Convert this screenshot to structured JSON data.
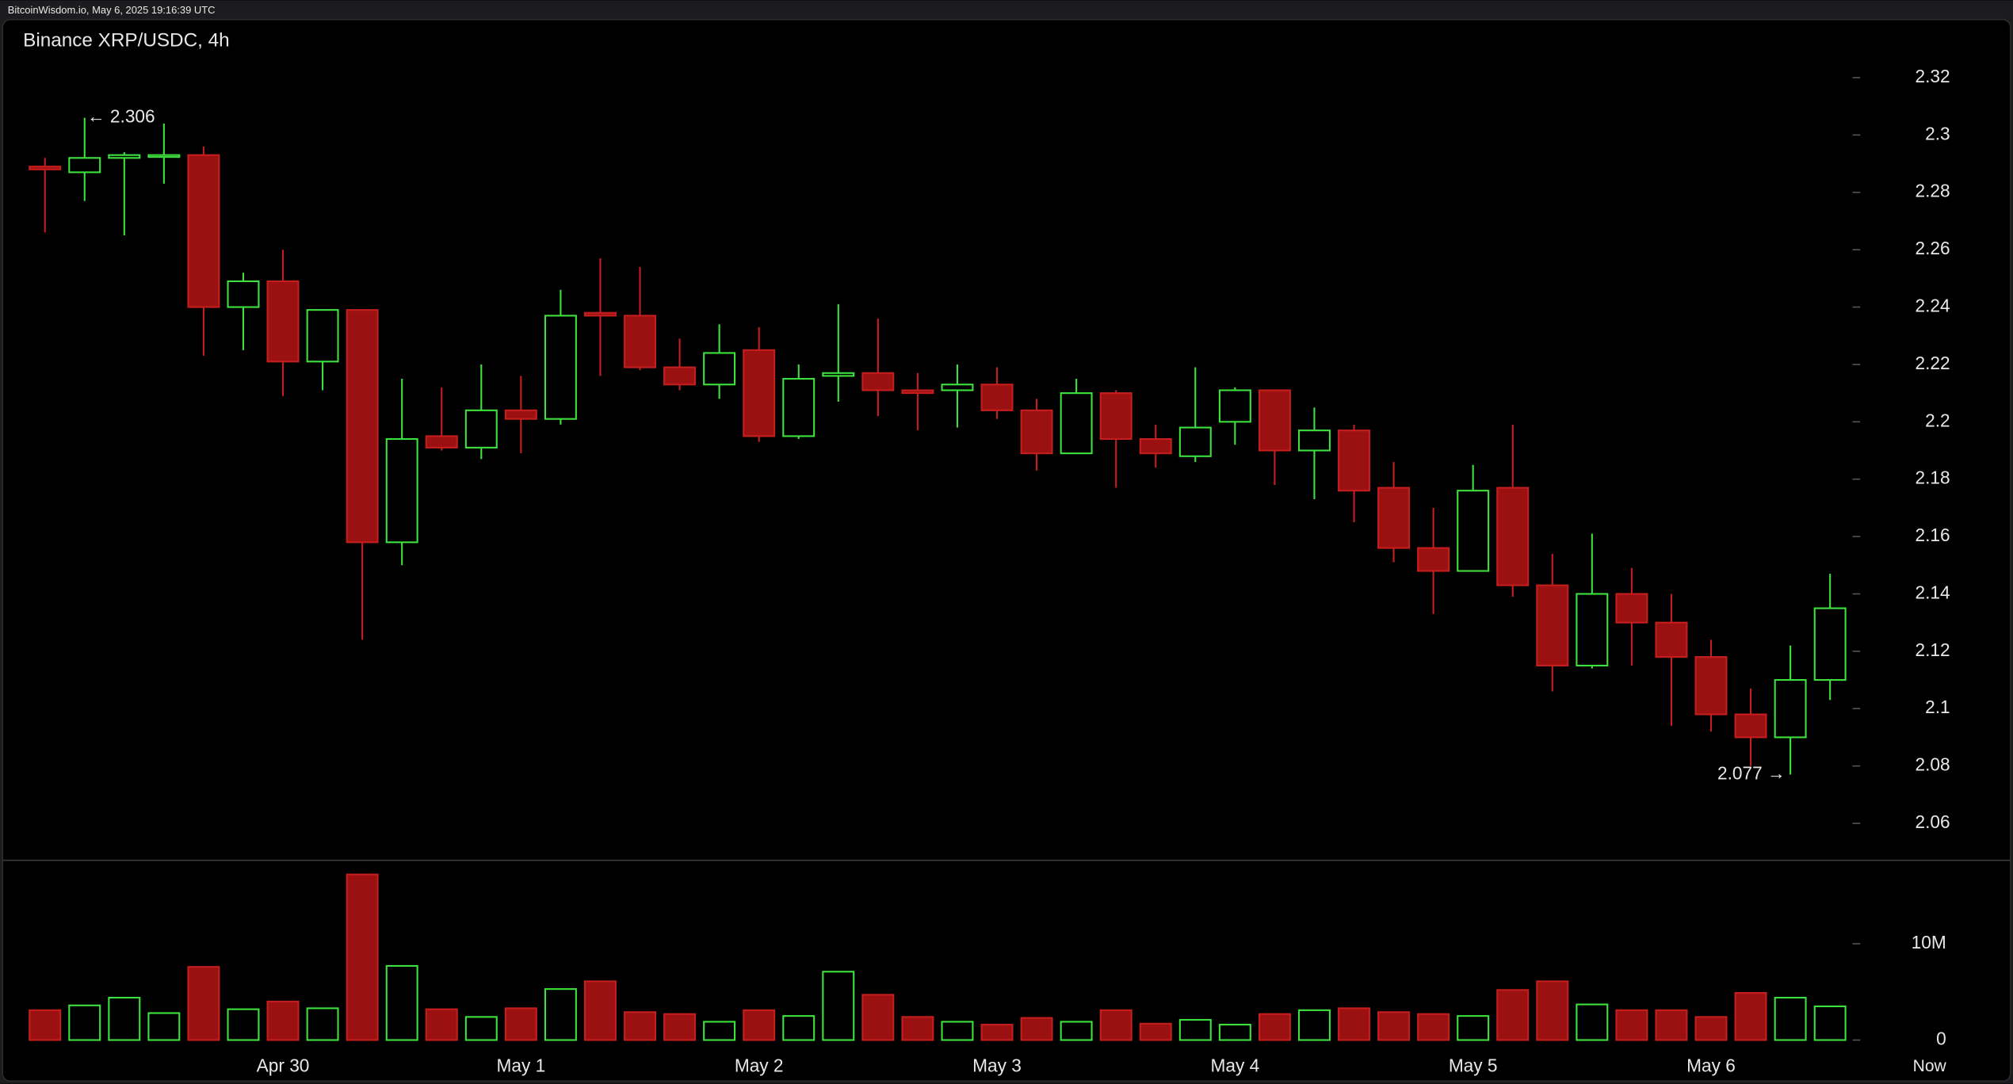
{
  "header": {
    "source": "BitcoinWisdom.io, May 6, 2025 19:16:39 UTC"
  },
  "chart_data": {
    "type": "candlestick",
    "title": "Binance XRP/USDC, 4h",
    "categories": [
      null,
      null,
      null,
      null,
      null,
      null,
      "Apr 30",
      null,
      null,
      null,
      null,
      null,
      "May 1",
      null,
      null,
      null,
      null,
      null,
      "May 2",
      null,
      null,
      null,
      null,
      null,
      "May 3",
      null,
      null,
      null,
      null,
      null,
      "May 4",
      null,
      null,
      null,
      null,
      null,
      "May 5",
      null,
      null,
      null,
      null,
      null,
      "May 6",
      null,
      null,
      null
    ],
    "now_label": "Now",
    "open": [
      2.289,
      2.287,
      2.292,
      2.293,
      2.293,
      2.24,
      2.249,
      2.221,
      2.239,
      2.158,
      2.195,
      2.191,
      2.204,
      2.201,
      2.238,
      2.237,
      2.219,
      2.213,
      2.225,
      2.195,
      2.216,
      2.217,
      2.211,
      2.211,
      2.213,
      2.204,
      2.189,
      2.21,
      2.194,
      2.188,
      2.2,
      2.211,
      2.19,
      2.197,
      2.177,
      2.156,
      2.148,
      2.177,
      2.143,
      2.115,
      2.14,
      2.13,
      2.118,
      2.098,
      2.09,
      2.11
    ],
    "high": [
      2.292,
      2.306,
      2.294,
      2.304,
      2.296,
      2.252,
      2.26,
      2.239,
      2.239,
      2.215,
      2.212,
      2.22,
      2.216,
      2.246,
      2.257,
      2.254,
      2.229,
      2.234,
      2.233,
      2.22,
      2.241,
      2.236,
      2.217,
      2.22,
      2.219,
      2.208,
      2.215,
      2.211,
      2.199,
      2.219,
      2.212,
      2.211,
      2.205,
      2.199,
      2.186,
      2.17,
      2.185,
      2.199,
      2.154,
      2.161,
      2.149,
      2.14,
      2.124,
      2.107,
      2.122,
      2.147
    ],
    "low": [
      2.266,
      2.277,
      2.265,
      2.283,
      2.223,
      2.225,
      2.209,
      2.211,
      2.124,
      2.15,
      2.19,
      2.187,
      2.189,
      2.199,
      2.216,
      2.218,
      2.211,
      2.208,
      2.193,
      2.194,
      2.207,
      2.202,
      2.197,
      2.198,
      2.201,
      2.183,
      2.189,
      2.177,
      2.184,
      2.186,
      2.192,
      2.178,
      2.173,
      2.165,
      2.151,
      2.133,
      2.148,
      2.139,
      2.106,
      2.114,
      2.115,
      2.094,
      2.092,
      2.08,
      2.077,
      2.103
    ],
    "close": [
      2.288,
      2.292,
      2.293,
      2.293,
      2.24,
      2.249,
      2.221,
      2.239,
      2.158,
      2.194,
      2.191,
      2.204,
      2.201,
      2.237,
      2.237,
      2.219,
      2.213,
      2.224,
      2.195,
      2.215,
      2.217,
      2.211,
      2.21,
      2.213,
      2.204,
      2.189,
      2.21,
      2.194,
      2.189,
      2.198,
      2.211,
      2.19,
      2.197,
      2.176,
      2.156,
      2.148,
      2.176,
      2.143,
      2.115,
      2.14,
      2.13,
      2.118,
      2.098,
      2.09,
      2.11,
      2.135
    ],
    "volume": [
      3100000,
      3600000,
      4400000,
      2800000,
      7600000,
      3200000,
      4000000,
      3300000,
      17200000,
      7700000,
      3200000,
      2400000,
      3300000,
      5300000,
      6100000,
      2900000,
      2700000,
      1900000,
      3100000,
      2500000,
      7100000,
      4700000,
      2400000,
      1900000,
      1600000,
      2300000,
      1900000,
      3100000,
      1700000,
      2100000,
      1600000,
      2700000,
      3100000,
      3300000,
      2900000,
      2700000,
      2500000,
      5200000,
      6100000,
      3700000,
      3100000,
      3100000,
      2400000,
      4900000,
      4400000,
      3500000
    ],
    "up_color": "#3ee03e",
    "down_color": "#c41e1e",
    "ylim": [
      2.048,
      2.338
    ],
    "yticks": [
      2.06,
      2.08,
      2.1,
      2.12,
      2.14,
      2.16,
      2.18,
      2.2,
      2.22,
      2.24,
      2.26,
      2.28,
      2.3,
      2.32
    ],
    "volume_ylim": [
      0,
      18400000
    ],
    "volume_ticks": [
      0,
      {
        "value": 10000000,
        "label": "10M"
      }
    ],
    "annotations": [
      {
        "label": "← 2.306",
        "value": 2.306
      },
      {
        "label": "2.077 →",
        "value": 2.077
      }
    ]
  }
}
